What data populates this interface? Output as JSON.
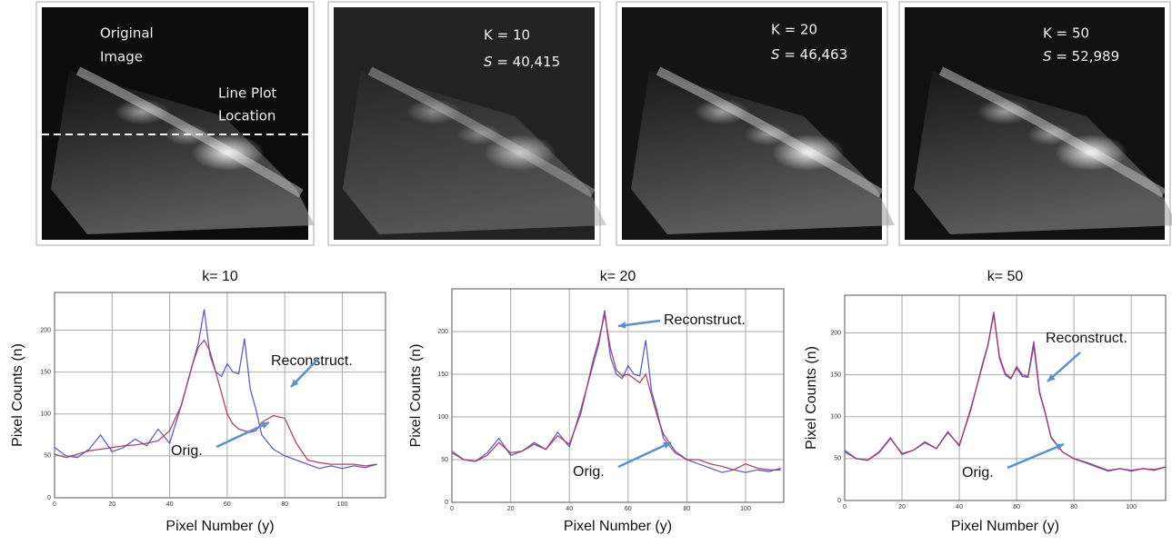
{
  "panels": [
    {
      "label_lines": [
        "Original",
        "Image"
      ],
      "marker_lines": [
        "Line Plot",
        "Location"
      ]
    },
    {
      "k_label": "K = 10",
      "s_symbol": "S",
      "s_text": "= 40,415"
    },
    {
      "k_label": "K = 20",
      "s_symbol": "S",
      "s_text": "= 46,463"
    },
    {
      "k_label": "K = 50",
      "s_symbol": "S",
      "s_text": "= 52,989"
    }
  ],
  "chart_data": [
    {
      "type": "line",
      "title": "k= 10",
      "x_label": "Pixel Number (y)",
      "y_label": "Pixel Counts  (n)",
      "x": [
        0,
        4,
        8,
        12,
        16,
        20,
        24,
        28,
        32,
        36,
        40,
        44,
        48,
        50,
        52,
        54,
        56,
        58,
        60,
        62,
        64,
        66,
        68,
        70,
        72,
        76,
        80,
        84,
        88,
        92,
        96,
        100,
        104,
        108,
        112
      ],
      "series": [
        {
          "name": "Orig.",
          "color": "#4b4fc4",
          "values": [
            60,
            50,
            48,
            58,
            75,
            55,
            60,
            70,
            62,
            82,
            65,
            110,
            160,
            185,
            225,
            170,
            150,
            145,
            160,
            150,
            148,
            190,
            130,
            105,
            75,
            58,
            50,
            45,
            40,
            35,
            38,
            35,
            38,
            36,
            40
          ]
        },
        {
          "name": "Reconstruct.",
          "color": "#a8305a",
          "values": [
            52,
            48,
            52,
            56,
            58,
            60,
            62,
            63,
            65,
            68,
            80,
            110,
            160,
            180,
            188,
            175,
            150,
            125,
            100,
            88,
            82,
            80,
            78,
            80,
            90,
            98,
            95,
            65,
            45,
            42,
            40,
            40,
            40,
            38,
            40
          ]
        }
      ],
      "xlim": [
        0,
        115
      ],
      "ylim": [
        0,
        245
      ],
      "xticks": [
        0,
        20,
        40,
        60,
        80,
        100
      ],
      "yticks": [
        0,
        50,
        100,
        150,
        200
      ],
      "grid": true
    },
    {
      "type": "line",
      "title": "k= 20",
      "x_label": "Pixel Number (y)",
      "y_label": "Pixel Counts  (n)",
      "x": [
        0,
        4,
        8,
        12,
        16,
        20,
        24,
        28,
        32,
        36,
        40,
        44,
        48,
        50,
        52,
        54,
        56,
        58,
        60,
        62,
        64,
        66,
        68,
        70,
        72,
        76,
        80,
        84,
        88,
        92,
        96,
        100,
        104,
        108,
        112
      ],
      "series": [
        {
          "name": "Orig.",
          "color": "#4b4fc4",
          "values": [
            60,
            50,
            48,
            58,
            75,
            55,
            60,
            70,
            62,
            82,
            65,
            110,
            160,
            185,
            225,
            170,
            150,
            145,
            160,
            150,
            148,
            190,
            130,
            105,
            75,
            58,
            50,
            45,
            40,
            35,
            38,
            35,
            38,
            36,
            40
          ]
        },
        {
          "name": "Reconstruct.",
          "color": "#a8305a",
          "values": [
            58,
            50,
            48,
            55,
            70,
            58,
            60,
            68,
            62,
            78,
            68,
            105,
            165,
            190,
            220,
            180,
            155,
            148,
            150,
            145,
            140,
            150,
            125,
            100,
            80,
            60,
            50,
            50,
            45,
            42,
            38,
            45,
            40,
            38,
            38
          ]
        }
      ],
      "xlim": [
        0,
        113
      ],
      "ylim": [
        0,
        250
      ],
      "xticks": [
        0,
        20,
        40,
        60,
        80,
        100
      ],
      "yticks": [
        0,
        50,
        100,
        150,
        200
      ],
      "grid": true
    },
    {
      "type": "line",
      "title": "k= 50",
      "x_label": "Pixel Number (y)",
      "y_label": "Pixel Counts  (n)",
      "x": [
        0,
        4,
        8,
        12,
        16,
        20,
        24,
        28,
        32,
        36,
        40,
        44,
        48,
        50,
        52,
        54,
        56,
        58,
        60,
        62,
        64,
        66,
        68,
        70,
        72,
        76,
        80,
        84,
        88,
        92,
        96,
        100,
        104,
        108,
        112
      ],
      "series": [
        {
          "name": "Orig.",
          "color": "#4b4fc4",
          "values": [
            60,
            50,
            48,
            58,
            75,
            55,
            60,
            70,
            62,
            82,
            65,
            110,
            160,
            185,
            225,
            170,
            150,
            145,
            160,
            150,
            148,
            190,
            130,
            105,
            75,
            58,
            50,
            45,
            40,
            35,
            38,
            35,
            38,
            36,
            40
          ]
        },
        {
          "name": "Reconstruct.",
          "color": "#a8305a",
          "values": [
            58,
            50,
            48,
            57,
            74,
            56,
            60,
            69,
            62,
            81,
            66,
            108,
            162,
            186,
            222,
            172,
            152,
            146,
            158,
            148,
            147,
            185,
            128,
            104,
            76,
            58,
            50,
            46,
            41,
            36,
            38,
            36,
            38,
            37,
            40
          ]
        }
      ],
      "xlim": [
        0,
        112
      ],
      "ylim": [
        0,
        245
      ],
      "xticks": [
        0,
        20,
        40,
        60,
        80,
        100
      ],
      "yticks": [
        0,
        50,
        100,
        150,
        200
      ],
      "grid": true
    }
  ]
}
